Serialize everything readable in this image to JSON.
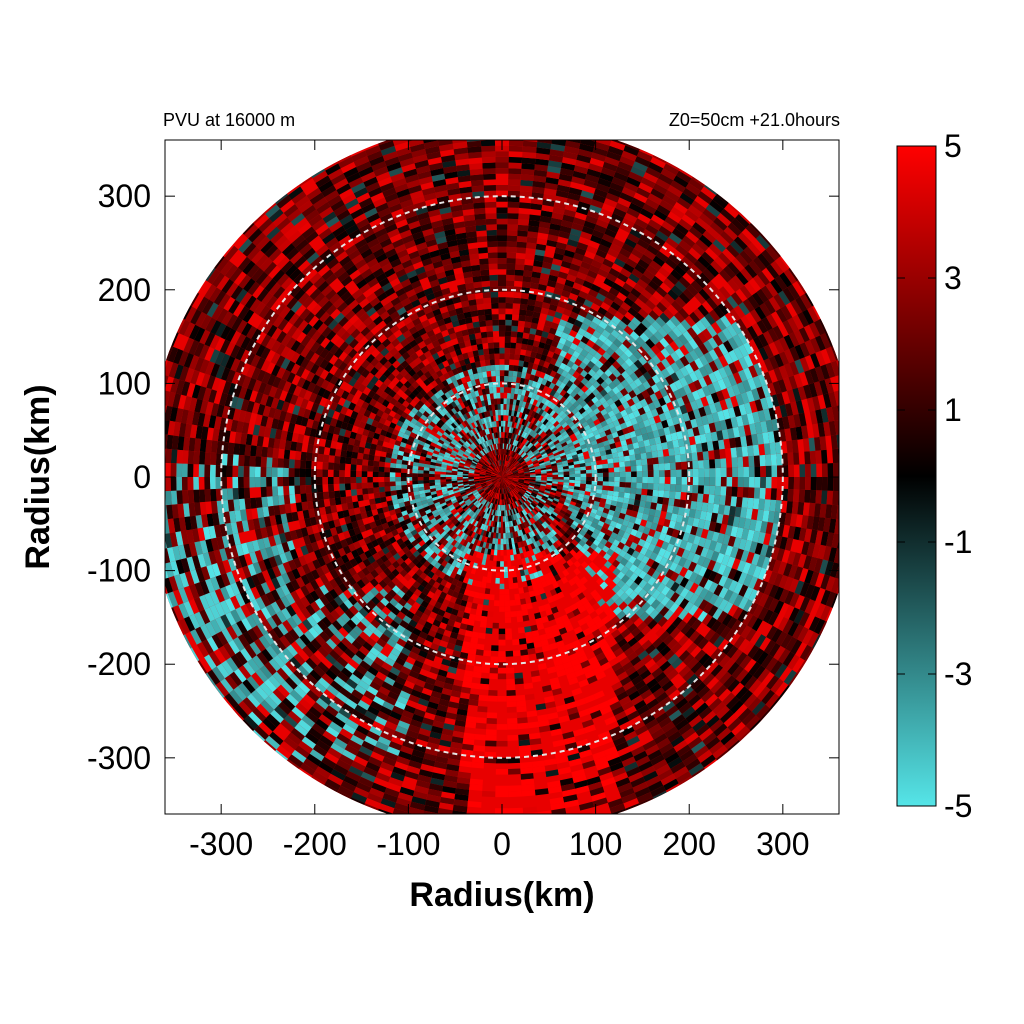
{
  "chart_data": {
    "type": "heatmap",
    "subtitle_left": "PVU at 16000 m",
    "subtitle_right": "Z0=50cm  +21.0hours",
    "xlabel": "Radius(km)",
    "ylabel": "Radius(km)",
    "xlim": [
      -360,
      360
    ],
    "ylim": [
      -360,
      360
    ],
    "xticks": [
      -300,
      -200,
      -100,
      0,
      100,
      200,
      300
    ],
    "yticks": [
      300,
      200,
      100,
      0,
      -100,
      -200,
      -300
    ],
    "xtick_labels": [
      "-300",
      "-200",
      "-100",
      "0",
      "100",
      "200",
      "300"
    ],
    "ytick_labels": [
      "300",
      "200",
      "100",
      "0",
      "-100",
      "-200",
      "-300"
    ],
    "domain_radius_km": 380,
    "reference_circles_km": [
      100,
      200,
      300
    ],
    "colorbar": {
      "min": -5,
      "max": 5,
      "tick_values": [
        5,
        3,
        1,
        -1,
        -3,
        -5
      ],
      "tick_labels": [
        "5",
        "3",
        "1",
        "-1",
        "-3",
        "-5"
      ],
      "colors": [
        "#55e5e8",
        "#000000",
        "#ff0000"
      ]
    }
  }
}
